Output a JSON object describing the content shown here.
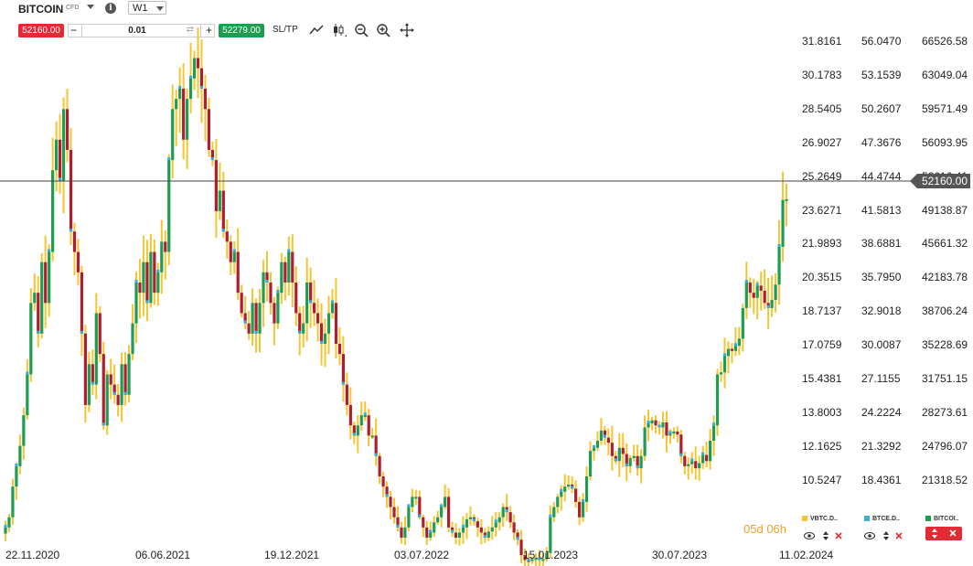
{
  "header": {
    "symbol": "BITCOIN",
    "symbol_tag": "CFD",
    "info_icon": "i",
    "timeframe": "W1"
  },
  "trade": {
    "bid": "52160.00",
    "ask": "52279.00",
    "minus": "−",
    "plus": "+",
    "volume": "0.01",
    "swap_icon": "⇄",
    "sltp_label": "SL/TP"
  },
  "tools": [
    "line-chart-icon",
    "candlestick-icon",
    "zoom-out-icon",
    "zoom-in-icon",
    "move-icon"
  ],
  "price_tag": "52160.00",
  "countdown": {
    "days": "05d",
    "hours": "06h"
  },
  "legend": [
    {
      "name": "VBTC.D..",
      "color": "#f5c431"
    },
    {
      "name": "BTCE.D..",
      "color": "#3aaed8"
    },
    {
      "name": "BITCOI..",
      "color": "#1e9c4f"
    }
  ],
  "chart_data": {
    "type": "candlestick",
    "current_price": 52160.0,
    "y_axes": [
      {
        "name": "",
        "ticks": [
          "31.8161",
          "30.1783",
          "28.5405",
          "26.9027",
          "25.2649",
          "23.6271",
          "21.9893",
          "20.3515",
          "18.7137",
          "17.0759",
          "15.4381",
          "13.8003",
          "12.1625",
          "10.5247"
        ]
      },
      {
        "name": "",
        "ticks": [
          "56.0470",
          "53.1539",
          "50.2607",
          "47.3676",
          "44.4744",
          "41.5813",
          "38.6881",
          "35.7950",
          "32.9018",
          "30.0087",
          "27.1155",
          "24.2224",
          "21.3292",
          "18.4361"
        ]
      },
      {
        "name": "",
        "ticks": [
          "66526.58",
          "63049.04",
          "59571.49",
          "56093.95",
          "52616.41",
          "49138.87",
          "45661.32",
          "42183.78",
          "38706.24",
          "35228.69",
          "31751.15",
          "28273.61",
          "24796.07",
          "21318.52"
        ]
      }
    ],
    "x_ticks": [
      "22.11.2020",
      "06.06.2021",
      "19.12.2021",
      "03.07.2022",
      "15.01.2023",
      "30.07.2023",
      "11.02.2024"
    ],
    "ylim": [
      19000,
      69000
    ],
    "close_series": [
      20000,
      21000,
      24000,
      26000,
      28000,
      31000,
      35000,
      42000,
      43000,
      39000,
      46000,
      42000,
      47000,
      55000,
      58000,
      54000,
      61000,
      57000,
      49000,
      47000,
      45000,
      39000,
      32000,
      36000,
      34000,
      41000,
      37000,
      30000,
      35000,
      34000,
      33000,
      32000,
      36000,
      33000,
      37000,
      40000,
      44000,
      43000,
      46000,
      42000,
      47000,
      43000,
      45000,
      48000,
      47000,
      56000,
      61000,
      62000,
      63000,
      58000,
      62000,
      64000,
      66000,
      65000,
      63000,
      61000,
      57000,
      56000,
      51000,
      53000,
      49000,
      48000,
      46000,
      47000,
      43000,
      41000,
      40000,
      39000,
      42000,
      39000,
      42000,
      45000,
      44000,
      42000,
      40000,
      43000,
      46000,
      44000,
      47000,
      44000,
      41000,
      39000,
      40000,
      44000,
      42000,
      41000,
      40000,
      38000,
      39000,
      41000,
      42000,
      38000,
      37000,
      34000,
      32000,
      30000,
      29000,
      30000,
      31000,
      31000,
      29000,
      29000,
      27000,
      25000,
      24000,
      23000,
      22000,
      21000,
      20000,
      19000,
      20000,
      22000,
      23000,
      23000,
      21000,
      20000,
      19000,
      19500,
      20500,
      21000,
      22000,
      23000,
      20000,
      19500,
      19000,
      19500,
      20000,
      20800,
      21000,
      20600,
      20000,
      19500,
      19000,
      19600,
      20000,
      20500,
      21000,
      22000,
      21500,
      20500,
      19500,
      18800,
      17300,
      16800,
      16700,
      16900,
      17000,
      16800,
      16900,
      17500,
      21000,
      22000,
      23000,
      23500,
      24000,
      24200,
      23800,
      22500,
      21000,
      22500,
      25000,
      27500,
      27800,
      28500,
      29500,
      28800,
      28300,
      27000,
      26500,
      27800,
      27200,
      26000,
      26800,
      27000,
      25800,
      27000,
      29800,
      30200,
      30500,
      30000,
      29800,
      30300,
      29000,
      29200,
      29400,
      29100,
      27000,
      26000,
      26200,
      26500,
      25800,
      26300,
      27100,
      26500,
      28500,
      30000,
      35000,
      35200,
      36800,
      37500,
      37300,
      37800,
      38500,
      41500,
      44000,
      43000,
      42500,
      43700,
      43200,
      42000,
      41500,
      42300,
      43800,
      47500,
      52100,
      52160
    ]
  }
}
